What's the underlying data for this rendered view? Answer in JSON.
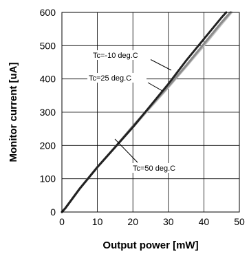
{
  "chart_data": {
    "type": "line",
    "title": "",
    "xlabel": "Output power [mW]",
    "ylabel": "Monitor current [uA]",
    "xlim": [
      0,
      50
    ],
    "ylim": [
      0,
      600
    ],
    "xticks": [
      0,
      10,
      20,
      30,
      40,
      50
    ],
    "yticks": [
      0,
      100,
      200,
      300,
      400,
      500,
      600
    ],
    "grid": true,
    "series": [
      {
        "name": "Tc=-10 deg.C",
        "color": "#222222",
        "x": [
          0,
          1,
          5,
          10,
          15,
          20,
          25,
          30,
          35,
          40,
          45,
          46.3
        ],
        "y": [
          0,
          12,
          70,
          135,
          195,
          255,
          320,
          385,
          455,
          520,
          585,
          600
        ]
      },
      {
        "name": "Tc=25 deg.C",
        "color": "#8c8c8c",
        "x": [
          0,
          1,
          5,
          10,
          15,
          20,
          25,
          30,
          35,
          40,
          45,
          47.5
        ],
        "y": [
          0,
          12,
          70,
          135,
          195,
          258,
          318,
          378,
          440,
          505,
          570,
          600
        ]
      },
      {
        "name": "Tc=50 deg.C",
        "color": "#c4c4c4",
        "x": [
          0,
          1,
          5,
          10,
          15,
          20,
          25,
          30,
          35,
          40,
          45,
          47.8
        ],
        "y": [
          0,
          12,
          70,
          135,
          195,
          255,
          315,
          375,
          437,
          500,
          565,
          600
        ]
      }
    ],
    "annotations": [
      "Tc=-10 deg.C",
      "Tc=25 deg.C",
      "Tc=50 deg.C"
    ]
  }
}
